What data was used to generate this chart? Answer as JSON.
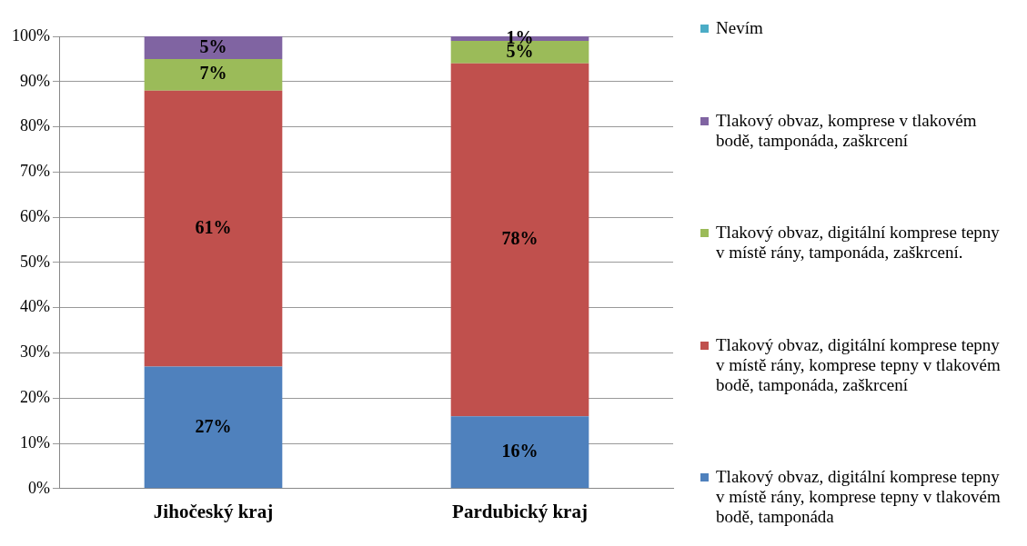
{
  "chart_data": {
    "type": "bar",
    "stacked": true,
    "categories": [
      "Jihočeský kraj",
      "Pardubický kraj"
    ],
    "ylim": [
      0,
      100
    ],
    "yticks": [
      {
        "value": 0,
        "label": "0%"
      },
      {
        "value": 10,
        "label": "10%"
      },
      {
        "value": 20,
        "label": "20%"
      },
      {
        "value": 30,
        "label": "30%"
      },
      {
        "value": 40,
        "label": "40%"
      },
      {
        "value": 50,
        "label": "50%"
      },
      {
        "value": 60,
        "label": "60%"
      },
      {
        "value": 70,
        "label": "70%"
      },
      {
        "value": 80,
        "label": "80%"
      },
      {
        "value": 90,
        "label": "90%"
      },
      {
        "value": 100,
        "label": "100%"
      }
    ],
    "grid": "y",
    "legend": "right",
    "series": [
      {
        "name": "Tlakový obvaz, digitální komprese tepny v místě rány, komprese tepny v tlakovém bodě, tamponáda",
        "color": "#4f81bd",
        "values": [
          27,
          16
        ],
        "value_labels": [
          "27%",
          "16%"
        ]
      },
      {
        "name": "Tlakový obvaz, digitální komprese tepny v místě rány, komprese tepny v tlakovém bodě, tamponáda, zaškrcení",
        "color": "#c0504d",
        "values": [
          61,
          78
        ],
        "value_labels": [
          "61%",
          "78%"
        ]
      },
      {
        "name": "Tlakový obvaz, digitální komprese tepny v místě rány, tamponáda, zaškrcení.",
        "color": "#9bbb59",
        "values": [
          7,
          5
        ],
        "value_labels": [
          "7%",
          "5%"
        ]
      },
      {
        "name": "Tlakový obvaz, komprese v tlakovém bodě, tamponáda, zaškrcení",
        "color": "#8064a2",
        "values": [
          5,
          1
        ],
        "value_labels": [
          "5%",
          "1%"
        ]
      },
      {
        "name": "Nevím",
        "color": "#4bacc6",
        "values": [
          0,
          0
        ],
        "value_labels": [
          null,
          null
        ]
      }
    ]
  }
}
